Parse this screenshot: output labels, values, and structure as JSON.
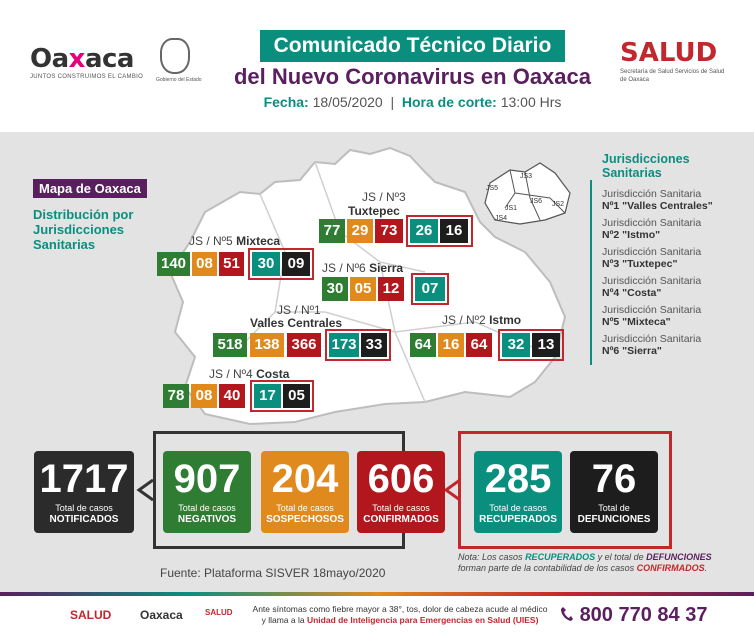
{
  "header": {
    "logo_text_a": "Oa",
    "logo_text_x": "x",
    "logo_text_b": "aca",
    "logo_tagline": "JUNTOS CONSTRUIMOS EL CAMBIO",
    "seal_caption": "Gobierno del Estado",
    "title_line1": "Comunicado Técnico Diario",
    "title_line2": "del Nuevo Coronavirus en Oaxaca",
    "fecha_label": "Fecha:",
    "fecha_value": "18/05/2020",
    "hora_label": "Hora de corte:",
    "hora_value": "13:00 Hrs",
    "salud_logo": "SALUD",
    "salud_sub": "Secretaría de Salud Servicios de Salud de Oaxaca"
  },
  "map": {
    "label": "Mapa de Oaxaca",
    "subtitle": "Distribución por Jurisdicciones Sanitarias",
    "mini_labels": [
      "JS1",
      "JS2",
      "JS3",
      "JS4",
      "JS5",
      "JS6"
    ],
    "jurisdictions": [
      {
        "name": "JS / Nº3",
        "sub": "Tuxtepec",
        "values": [
          "77",
          "29",
          "73",
          "26",
          "16"
        ]
      },
      {
        "name": "JS / Nº5",
        "sub": "Mixteca",
        "values": [
          "140",
          "08",
          "51",
          "30",
          "09"
        ]
      },
      {
        "name": "JS / Nº6",
        "sub": "Sierra",
        "values": [
          "30",
          "05",
          "12",
          "07"
        ]
      },
      {
        "name": "JS / Nº1",
        "sub": "Valles Centrales",
        "values": [
          "518",
          "138",
          "366",
          "173",
          "33"
        ]
      },
      {
        "name": "JS / Nº2",
        "sub": "Istmo",
        "values": [
          "64",
          "16",
          "64",
          "32",
          "13"
        ]
      },
      {
        "name": "JS / Nº4",
        "sub": "Costa",
        "values": [
          "78",
          "08",
          "40",
          "17",
          "05"
        ]
      }
    ]
  },
  "legend": {
    "title": "Jurisdicciones Sanitarias",
    "items": [
      {
        "line1": "Jurisdicción Sanitaria",
        "line2": "Nº1 \"Valles Centrales\""
      },
      {
        "line1": "Jurisdicción Sanitaria",
        "line2": "Nº2 \"Istmo\""
      },
      {
        "line1": "Jurisdicción Sanitaria",
        "line2": "Nº3 \"Tuxtepec\""
      },
      {
        "line1": "Jurisdicción Sanitaria",
        "line2": "Nº4 \"Costa\""
      },
      {
        "line1": "Jurisdicción Sanitaria",
        "line2": "Nº5 \"Mixteca\""
      },
      {
        "line1": "Jurisdicción Sanitaria",
        "line2": "Nº6 \"Sierra\""
      }
    ]
  },
  "totals": [
    {
      "value": "1717",
      "label1": "Total de casos",
      "label2": "NOTIFICADOS",
      "color": "#2b2b2b"
    },
    {
      "value": "907",
      "label1": "Total de casos",
      "label2": "NEGATIVOS",
      "color": "#2e7d32"
    },
    {
      "value": "204",
      "label1": "Total de casos",
      "label2": "SOSPECHOSOS",
      "color": "#e08a1e"
    },
    {
      "value": "606",
      "label1": "Total de casos",
      "label2": "CONFIRMADOS",
      "color": "#b2171d"
    },
    {
      "value": "285",
      "label1": "Total de casos",
      "label2": "RECUPERADOS",
      "color": "#0a8f7f"
    },
    {
      "value": "76",
      "label1": "Total de",
      "label2": "DEFUNCIONES",
      "color": "#1d1d1d"
    }
  ],
  "source": "Fuente: Plataforma SISVER 18mayo/2020",
  "note": {
    "label": "Nota:",
    "p1": "Los casos ",
    "recuperados": "RECUPERADOS",
    "p2": " y el total de ",
    "defunciones": "DEFUNCIONES",
    "p3": " forman parte de la contabilidad de los casos ",
    "confirmados": "CONFIRMADOS",
    "p4": "."
  },
  "footer": {
    "salud": "SALUD",
    "oaxaca": "Oaxaca",
    "salud2": "SALUD",
    "text1": "Ante síntomas como fiebre mayor a 38°, tos, dolor de cabeza acude al médico",
    "text2a": "y llama a la ",
    "text2b": "Unidad de Inteligencia para Emergencias en Salud (UIES)",
    "phone": "800 770 84 37",
    "phone_icon": "phone-icon"
  }
}
